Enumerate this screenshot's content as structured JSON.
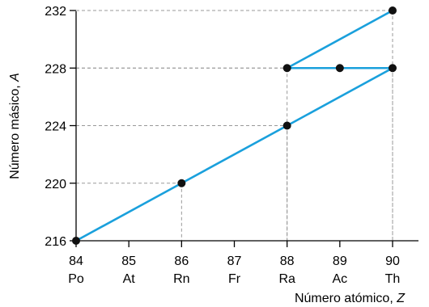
{
  "chart_data": {
    "type": "line",
    "xlabel": "Número atómico, ",
    "xlabel_var": "Z",
    "ylabel": "Número másico, ",
    "ylabel_var": "A",
    "xlim": [
      84,
      91
    ],
    "ylim": [
      216,
      233
    ],
    "x_ticks": [
      {
        "value": 84,
        "number": "84",
        "symbol": "Po"
      },
      {
        "value": 85,
        "number": "85",
        "symbol": "At"
      },
      {
        "value": 86,
        "number": "86",
        "symbol": "Rn"
      },
      {
        "value": 87,
        "number": "87",
        "symbol": "Fr"
      },
      {
        "value": 88,
        "number": "88",
        "symbol": "Ra"
      },
      {
        "value": 89,
        "number": "89",
        "symbol": "Ac"
      },
      {
        "value": 90,
        "number": "90",
        "symbol": "Th"
      }
    ],
    "y_ticks": [
      216,
      220,
      224,
      228,
      232
    ],
    "line_color": "#1aa0dc",
    "point_color": "#111111",
    "grid_color": "#999999",
    "path": [
      {
        "x": 90,
        "y": 232
      },
      {
        "x": 88,
        "y": 228
      },
      {
        "x": 89,
        "y": 228
      },
      {
        "x": 90,
        "y": 228
      },
      {
        "x": 88,
        "y": 224
      },
      {
        "x": 86,
        "y": 220
      },
      {
        "x": 84,
        "y": 216
      }
    ],
    "points": [
      {
        "x": 90,
        "y": 232
      },
      {
        "x": 88,
        "y": 228
      },
      {
        "x": 89,
        "y": 228
      },
      {
        "x": 90,
        "y": 228
      },
      {
        "x": 88,
        "y": 224
      },
      {
        "x": 86,
        "y": 220
      },
      {
        "x": 84,
        "y": 216
      }
    ],
    "guides": [
      {
        "x": 90,
        "y": 232
      },
      {
        "x": 90,
        "y": 228
      },
      {
        "x": 88,
        "y": 228
      },
      {
        "x": 88,
        "y": 224
      },
      {
        "x": 86,
        "y": 220
      }
    ]
  }
}
